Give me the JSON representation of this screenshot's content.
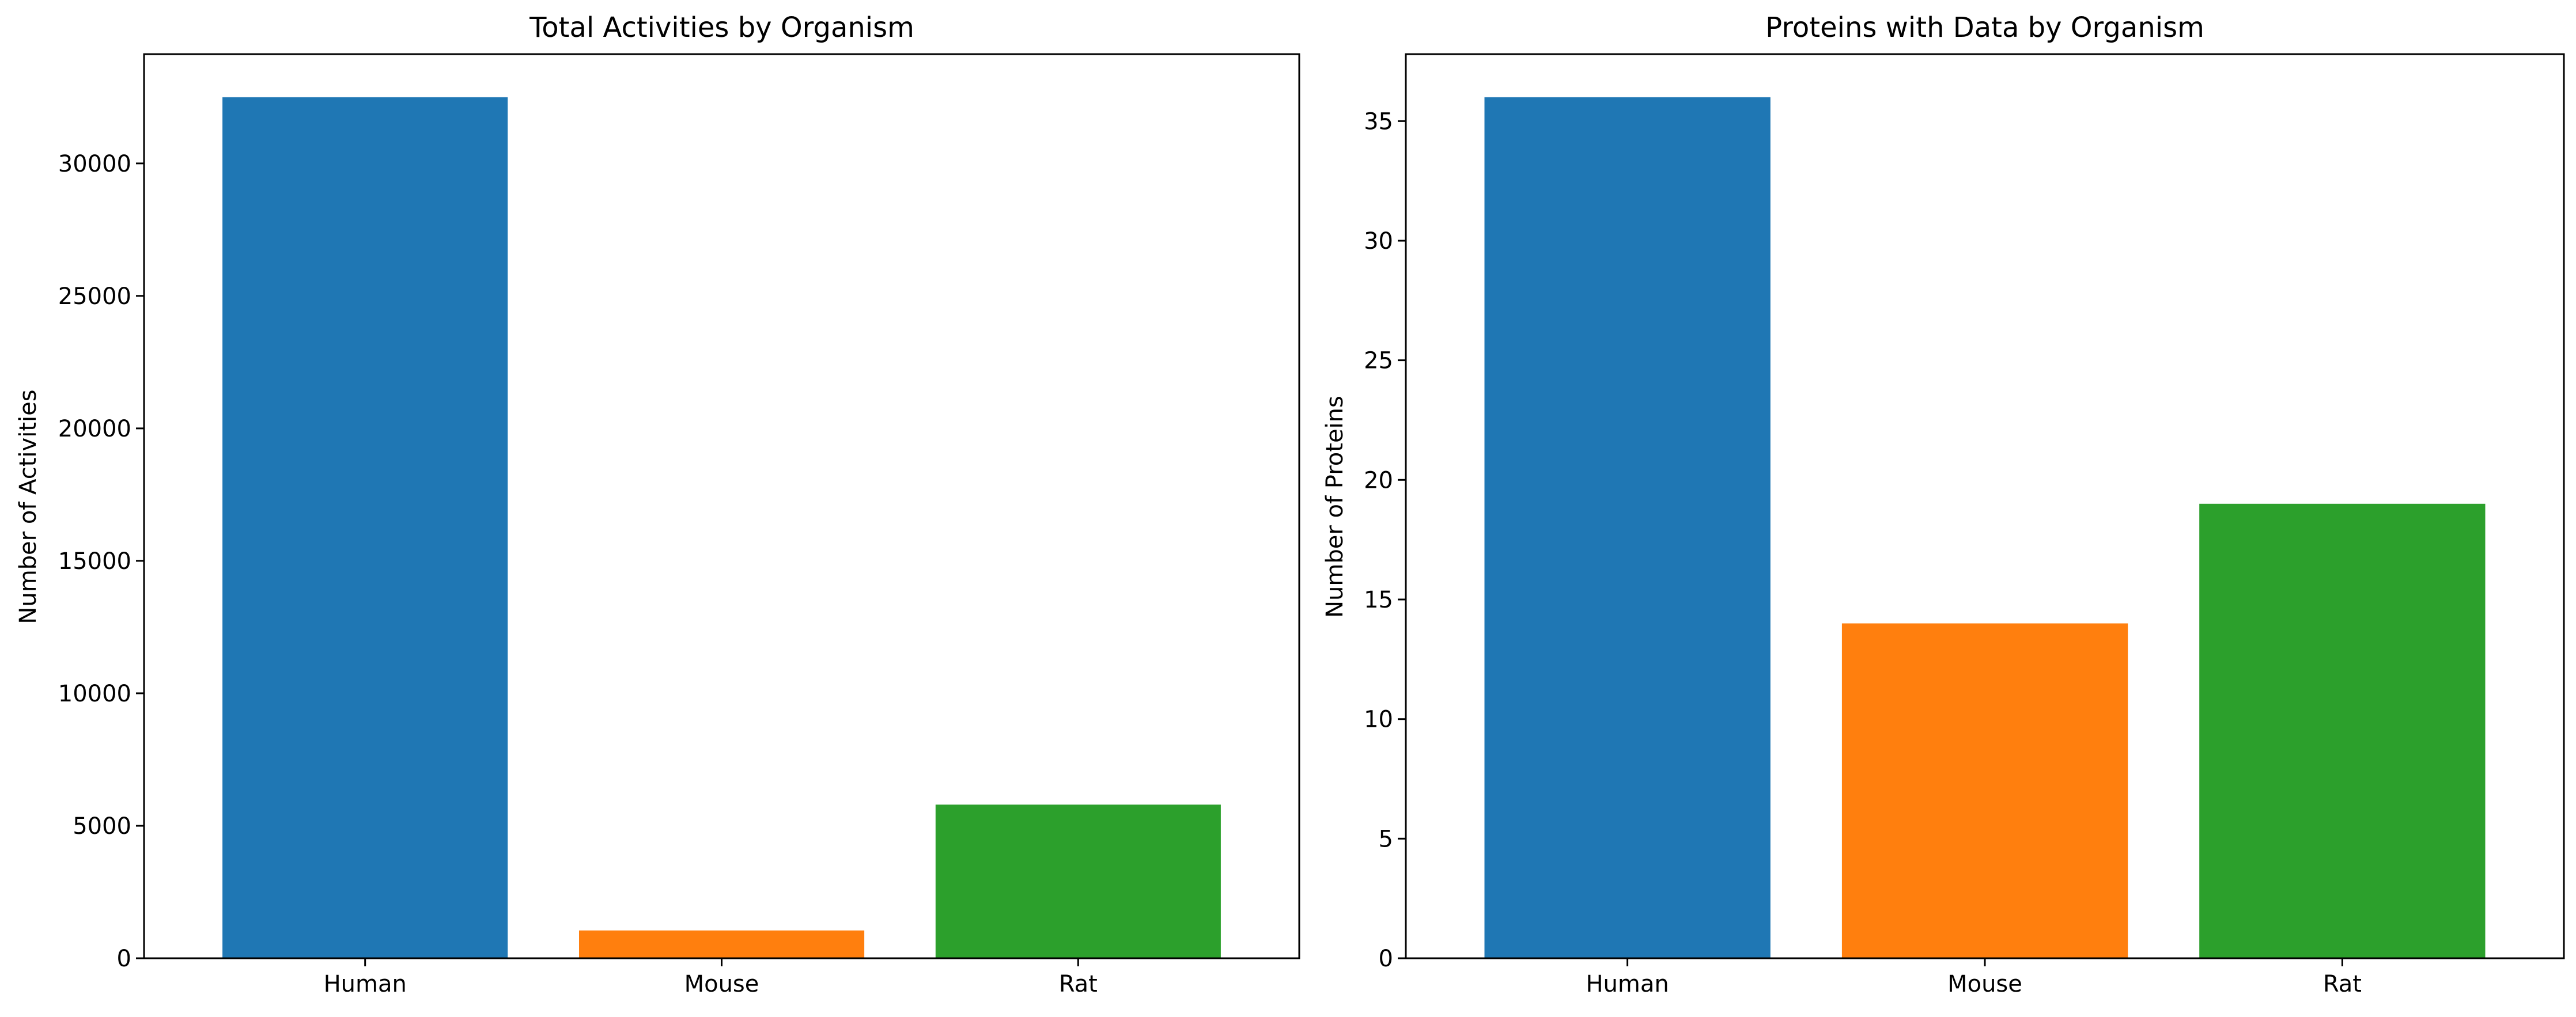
{
  "chart_data": [
    {
      "type": "bar",
      "title": "Total Activities by Organism",
      "xlabel": "",
      "ylabel": "Number of Activities",
      "categories": [
        "Human",
        "Mouse",
        "Rat"
      ],
      "values": [
        32500,
        1050,
        5800
      ],
      "colors": [
        "#1f77b4",
        "#ff7f0e",
        "#2ca02c"
      ],
      "ylim": [
        0,
        34125
      ],
      "yticks": [
        0,
        5000,
        10000,
        15000,
        20000,
        25000,
        30000
      ],
      "grid": false,
      "legend": "none"
    },
    {
      "type": "bar",
      "title": "Proteins with Data by Organism",
      "xlabel": "",
      "ylabel": "Number of Proteins",
      "categories": [
        "Human",
        "Mouse",
        "Rat"
      ],
      "values": [
        36,
        14,
        19
      ],
      "colors": [
        "#1f77b4",
        "#ff7f0e",
        "#2ca02c"
      ],
      "ylim": [
        0,
        37.8
      ],
      "yticks": [
        0,
        5,
        10,
        15,
        20,
        25,
        30,
        35
      ],
      "grid": false,
      "legend": "none"
    }
  ]
}
